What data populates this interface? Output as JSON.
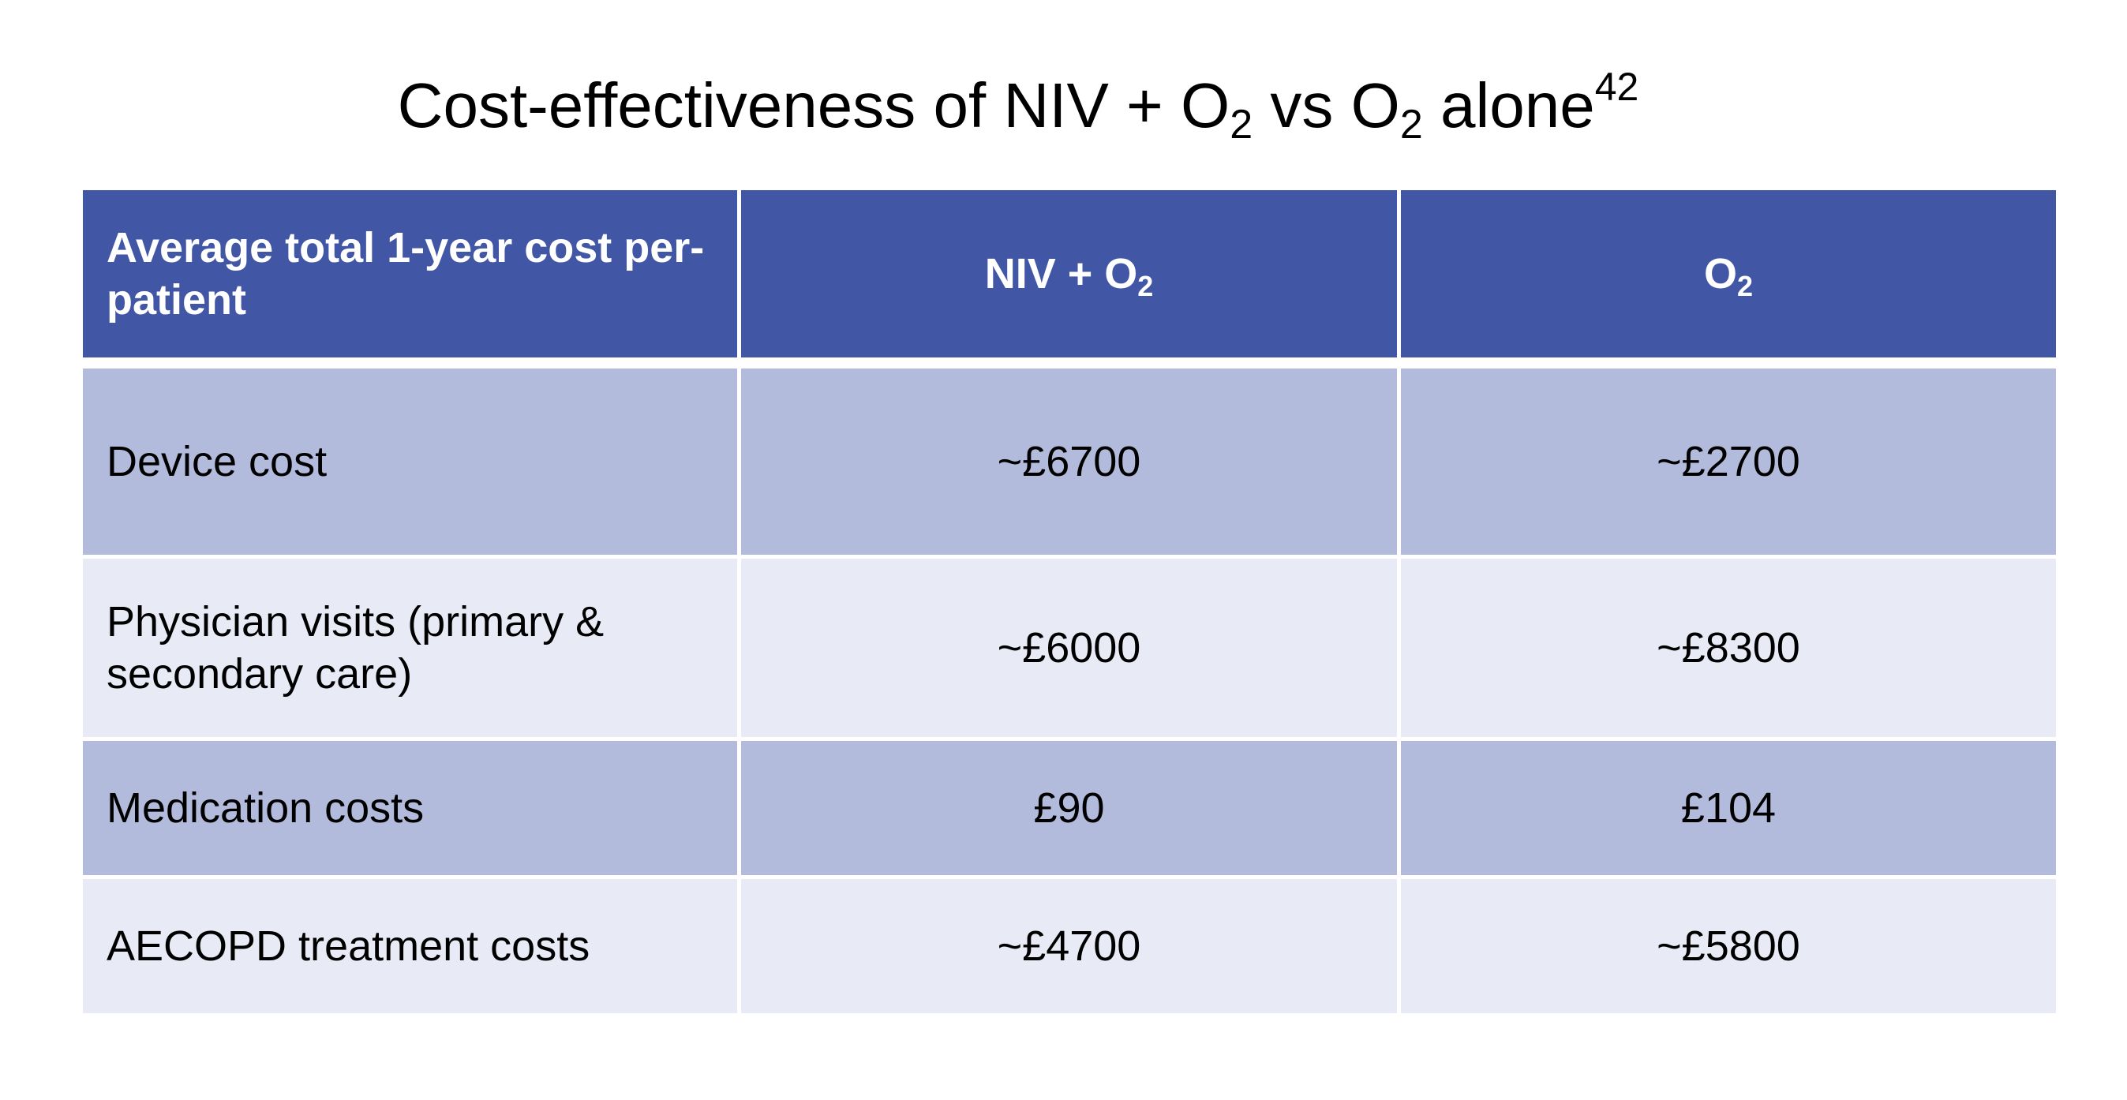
{
  "title": {
    "prefix": "Cost-effectiveness of NIV + O",
    "sub1": "2",
    "middle": " vs O",
    "sub2": "2",
    "suffix": " alone",
    "citation": "42"
  },
  "table": {
    "header": {
      "col1": "Average total 1-year cost per-patient",
      "col2_text": "NIV + O",
      "col2_sub": "2",
      "col3_text": "O",
      "col3_sub": "2"
    },
    "rows": [
      {
        "label": "Device cost",
        "niv_o2": "~£6700",
        "o2": "~£2700",
        "bold": "niv_o2"
      },
      {
        "label": "Physician visits (primary & secondary care)",
        "niv_o2": "~£6000",
        "o2": "~£8300",
        "bold": "o2"
      },
      {
        "label": "Medication costs",
        "niv_o2": "£90",
        "o2": "£104",
        "bold": "o2"
      },
      {
        "label": "AECOPD treatment costs",
        "niv_o2": "~£4700",
        "o2": "~£5800",
        "bold": "o2"
      }
    ]
  },
  "colors": {
    "header_bg": "#4256a6",
    "row_dark": "#b2bbdb",
    "row_light": "#e8ebf5"
  }
}
